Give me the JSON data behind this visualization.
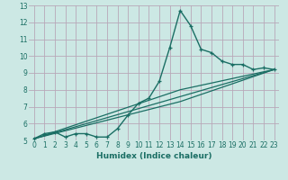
{
  "title": "",
  "xlabel": "Humidex (Indice chaleur)",
  "background_color": "#cce8e4",
  "grid_color": "#b8a8b8",
  "line_color": "#1a6e64",
  "xlim": [
    -0.5,
    23.5
  ],
  "ylim": [
    5,
    13
  ],
  "xticks": [
    0,
    1,
    2,
    3,
    4,
    5,
    6,
    7,
    8,
    9,
    10,
    11,
    12,
    13,
    14,
    15,
    16,
    17,
    18,
    19,
    20,
    21,
    22,
    23
  ],
  "yticks": [
    5,
    6,
    7,
    8,
    9,
    10,
    11,
    12,
    13
  ],
  "line1_x": [
    0,
    1,
    2,
    3,
    4,
    5,
    6,
    7,
    8,
    9,
    10,
    11,
    12,
    13,
    14,
    15,
    16,
    17,
    18,
    19,
    20,
    21,
    22,
    23
  ],
  "line1_y": [
    5.1,
    5.4,
    5.5,
    5.2,
    5.4,
    5.4,
    5.2,
    5.2,
    5.7,
    6.5,
    7.2,
    7.5,
    8.5,
    10.5,
    12.7,
    11.8,
    10.4,
    10.2,
    9.7,
    9.5,
    9.5,
    9.2,
    9.3,
    9.2
  ],
  "line2_x": [
    0,
    23
  ],
  "line2_y": [
    5.1,
    9.2
  ],
  "line3_x": [
    0,
    14,
    23
  ],
  "line3_y": [
    5.1,
    8.0,
    9.2
  ],
  "line4_x": [
    0,
    14,
    23
  ],
  "line4_y": [
    5.1,
    7.3,
    9.2
  ],
  "tick_fontsize": 5.5,
  "xlabel_fontsize": 6.5
}
